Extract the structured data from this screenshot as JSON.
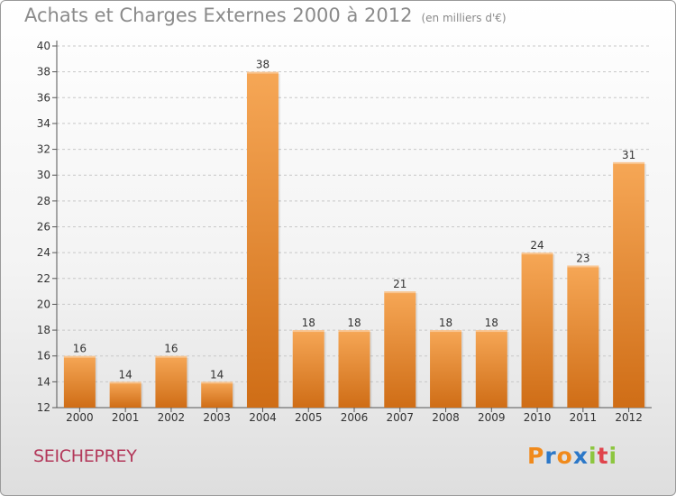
{
  "title": "Achats et Charges Externes 2000 à 2012",
  "unit": "(en milliers d'€)",
  "town": "SEICHEPREY",
  "logo": {
    "text": "Proxiti",
    "letters": [
      {
        "char": "P",
        "color": "#f08a1c"
      },
      {
        "char": "r",
        "color": "#2c78c8"
      },
      {
        "char": "o",
        "color": "#f08a1c"
      },
      {
        "char": "x",
        "color": "#2c78c8"
      },
      {
        "char": "i",
        "color": "#8dc63f"
      },
      {
        "char": "t",
        "color": "#e0444c"
      },
      {
        "char": "i",
        "color": "#8dc63f"
      }
    ]
  },
  "colors": {
    "bar_light": "#f6a756",
    "bar_dark": "#cf6d16",
    "title": "#8a8a8a",
    "town": "#b3385a",
    "grid": "#c8c8c8"
  },
  "chart_data": {
    "type": "bar",
    "title": "Achats et Charges Externes 2000 à 2012",
    "subtitle": "(en milliers d'€)",
    "categories": [
      "2000",
      "2001",
      "2002",
      "2003",
      "2004",
      "2005",
      "2006",
      "2007",
      "2008",
      "2009",
      "2010",
      "2011",
      "2012"
    ],
    "values": [
      16,
      14,
      16,
      14,
      38,
      18,
      18,
      21,
      18,
      18,
      24,
      23,
      31
    ],
    "ylim": [
      12,
      40
    ],
    "yticks": [
      12,
      14,
      16,
      18,
      20,
      22,
      24,
      26,
      28,
      30,
      32,
      34,
      36,
      38,
      40
    ],
    "grid": true,
    "legend": "none"
  }
}
